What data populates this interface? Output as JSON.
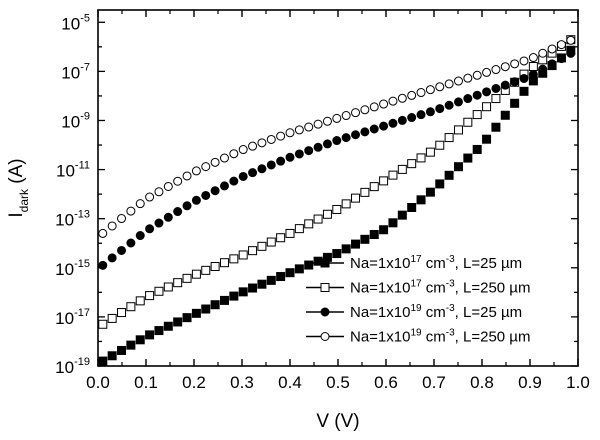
{
  "chart_data": {
    "type": "scatter",
    "title": "",
    "xlabel": "V (V)",
    "ylabel": {
      "main": "I",
      "sub": "dark",
      "unit": " (A)"
    },
    "xlim": [
      0.0,
      1.0
    ],
    "ylim_log10": [
      -19,
      -4.5
    ],
    "yscale": "log",
    "grid": false,
    "legend_position": "bottom-right",
    "x_ticks": [
      "0.0",
      "0.1",
      "0.2",
      "0.3",
      "0.4",
      "0.5",
      "0.6",
      "0.7",
      "0.8",
      "0.9",
      "1.0"
    ],
    "y_ticks": [
      {
        "base": "10",
        "exp": "-5"
      },
      {
        "base": "10",
        "exp": "-7"
      },
      {
        "base": "10",
        "exp": "-9"
      },
      {
        "base": "10",
        "exp": "-11"
      },
      {
        "base": "10",
        "exp": "-13"
      },
      {
        "base": "10",
        "exp": "-15"
      },
      {
        "base": "10",
        "exp": "-17"
      },
      {
        "base": "10",
        "exp": "-19"
      }
    ],
    "series": [
      {
        "name": {
          "pre": "Na=1x10",
          "exp": "17",
          "post": " cm",
          "exp2": "-3",
          "tail": ", L=25 µm"
        },
        "marker": "square-filled",
        "x": [
          0.01,
          0.1,
          0.2,
          0.3,
          0.4,
          0.5,
          0.6,
          0.7,
          0.8,
          0.9,
          1.0
        ],
        "log10y": [
          -18.8,
          -17.8,
          -16.9,
          -16.0,
          -15.2,
          -14.4,
          -13.4,
          -11.8,
          -10.0,
          -7.5,
          -5.9
        ]
      },
      {
        "name": {
          "pre": "Na=1x10",
          "exp": "17",
          "post": " cm",
          "exp2": "-3",
          "tail": ", L=250 µm"
        },
        "marker": "square-open",
        "x": [
          0.01,
          0.1,
          0.2,
          0.3,
          0.4,
          0.5,
          0.6,
          0.7,
          0.8,
          0.9,
          1.0
        ],
        "log10y": [
          -17.3,
          -16.2,
          -15.3,
          -14.5,
          -13.6,
          -12.6,
          -11.4,
          -10.2,
          -8.6,
          -6.9,
          -5.5
        ]
      },
      {
        "name": {
          "pre": "Na=1x10",
          "exp": "19",
          "post": " cm",
          "exp2": "-3",
          "tail": ", L=25 µm"
        },
        "marker": "circle-filled",
        "x": [
          0.01,
          0.1,
          0.2,
          0.3,
          0.4,
          0.5,
          0.6,
          0.7,
          0.8,
          0.9,
          1.0
        ],
        "log10y": [
          -14.9,
          -13.5,
          -12.3,
          -11.3,
          -10.5,
          -9.8,
          -9.2,
          -8.6,
          -7.9,
          -7.2,
          -6.1
        ]
      },
      {
        "name": {
          "pre": "Na=1x10",
          "exp": "19",
          "post": " cm",
          "exp2": "-3",
          "tail": ", L=250 µm"
        },
        "marker": "circle-open",
        "x": [
          0.01,
          0.1,
          0.2,
          0.3,
          0.4,
          0.5,
          0.6,
          0.7,
          0.8,
          0.9,
          1.0
        ],
        "log10y": [
          -13.6,
          -12.2,
          -11.1,
          -10.2,
          -9.5,
          -8.9,
          -8.3,
          -7.7,
          -7.1,
          -6.5,
          -5.6
        ]
      }
    ]
  }
}
